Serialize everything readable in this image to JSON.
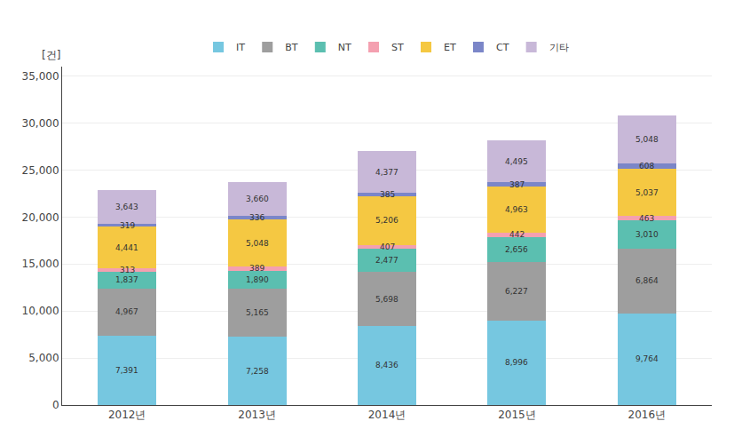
{
  "chart_data": {
    "type": "bar",
    "stacked": true,
    "ylabel": "[건]",
    "categories": [
      "2012년",
      "2013년",
      "2014년",
      "2015년",
      "2016년"
    ],
    "series": [
      {
        "name": "IT",
        "color": "#76c7e0",
        "values": [
          7391,
          7258,
          8436,
          8996,
          9764
        ],
        "value_labels": [
          "7,391",
          "7,258",
          "8,436",
          "8,996",
          "9,764"
        ]
      },
      {
        "name": "BT",
        "color": "#9e9e9e",
        "values": [
          4967,
          5165,
          5698,
          6227,
          6864
        ],
        "value_labels": [
          "4,967",
          "5,165",
          "5,698",
          "6,227",
          "6,864"
        ]
      },
      {
        "name": "NT",
        "color": "#5bbfb0",
        "values": [
          1837,
          1890,
          2477,
          2656,
          3010
        ],
        "value_labels": [
          "1,837",
          "1,890",
          "2,477",
          "2,656",
          "3,010"
        ]
      },
      {
        "name": "ST",
        "color": "#f4a0b0",
        "values": [
          313,
          389,
          407,
          442,
          463
        ]
      },
      {
        "name": "ET",
        "color": "#f5c842",
        "values": [
          4441,
          5048,
          5206,
          4963,
          5037
        ],
        "value_labels": [
          "4,441",
          "5,048",
          "5,206",
          "4,963",
          "5,037"
        ]
      },
      {
        "name": "CT",
        "color": "#7b86c8",
        "values": [
          319,
          336,
          385,
          387,
          608
        ]
      },
      {
        "name": "기타",
        "color": "#c8b8d8",
        "values": [
          3643,
          3660,
          4377,
          4495,
          5048
        ],
        "value_labels": [
          "3,643",
          "3,660",
          "4,377",
          "4,495",
          "5,048"
        ]
      }
    ],
    "ylim": [
      0,
      36000
    ],
    "yticks": [
      0,
      {
        "value": 5000,
        "label": "5,000"
      },
      {
        "value": 10000,
        "label": "10,000"
      },
      {
        "value": 15000,
        "label": "15,000"
      },
      {
        "value": 20000,
        "label": "20,000"
      },
      {
        "value": 25000,
        "label": "25,000"
      },
      {
        "value": 30000,
        "label": "30,000"
      },
      {
        "value": 35000,
        "label": "35,000"
      }
    ],
    "grid": true,
    "legend": "top",
    "data_labels": true
  }
}
